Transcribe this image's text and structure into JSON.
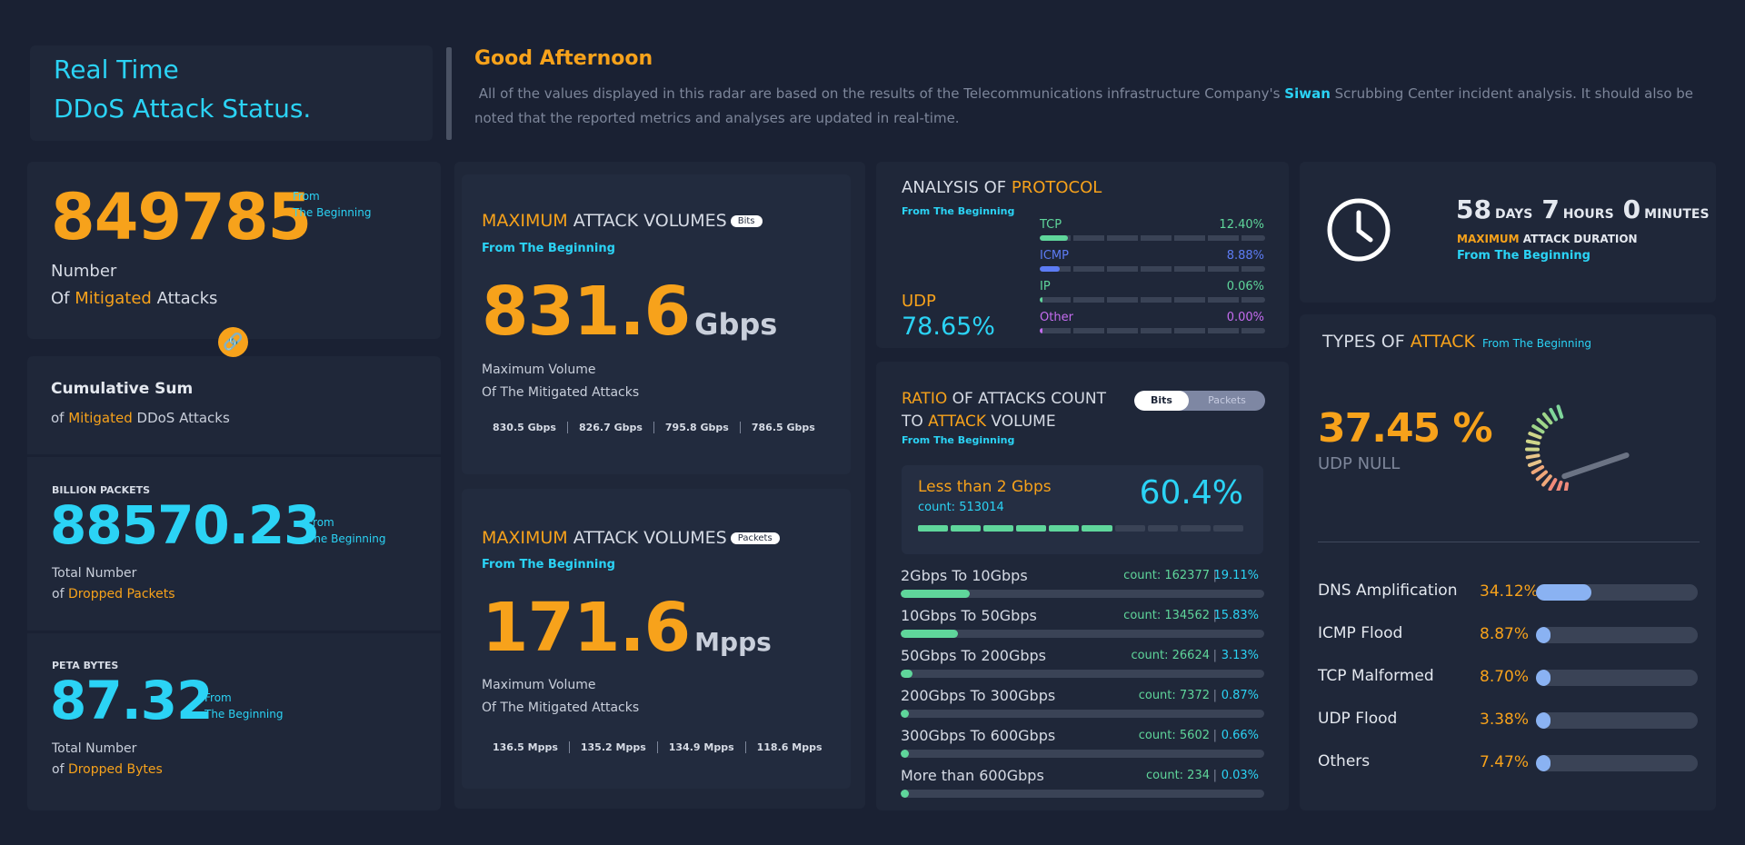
{
  "header": {
    "title_line1": "Real Time",
    "title_line2": "DDoS Attack Status.",
    "greeting": "Good Afternoon",
    "intro_pre": "All of the values displayed in this radar are based on the results of the Telecommunications infrastructure Company's ",
    "intro_brand": "Siwan",
    "intro_post": " Scrubbing Center incident analysis. It should also be noted that the reported metrics and analyses are updated in real-time."
  },
  "mitigated": {
    "value": "849785",
    "from1": "From",
    "from2": "The Beginning",
    "label1": "Number",
    "label2a": "Of ",
    "label2b": "Mitigated",
    "label2c": " Attacks"
  },
  "cumulative": {
    "title": "Cumulative Sum",
    "sub_a": "of ",
    "sub_b": "Mitigated",
    "sub_c": " DDoS Attacks"
  },
  "packets": {
    "caption": "BILLION PACKETS",
    "value": "88570.23",
    "from1": "From",
    "from2": "The Beginning",
    "label1": "Total Number",
    "label2a": "of ",
    "label2b": "Dropped Packets"
  },
  "bytes": {
    "caption": "PETA BYTES",
    "value": "87.32",
    "from1": "From",
    "from2": "The Beginning",
    "label1": "Total Number",
    "label2a": "of ",
    "label2b": "Dropped Bytes"
  },
  "max_bits": {
    "title_a": "MAXIMUM",
    "title_b": " ATTACK VOLUMES",
    "badge": "Bits",
    "from": "From The Beginning",
    "value": "831.6",
    "unit": "Gbps",
    "label1": "Maximum Volume",
    "label2": "Of The Mitigated Attacks",
    "recent": [
      "830.5 Gbps",
      "826.7 Gbps",
      "795.8 Gbps",
      "786.5 Gbps"
    ]
  },
  "max_packets": {
    "title_a": "MAXIMUM",
    "title_b": " ATTACK VOLUMES",
    "badge": "Packets",
    "from": "From The Beginning",
    "value": "171.6",
    "unit": "Mpps",
    "label1": "Maximum Volume",
    "label2": "Of The Mitigated Attacks",
    "recent": [
      "136.5 Mpps",
      "135.2 Mpps",
      "134.9 Mpps",
      "118.6 Mpps"
    ]
  },
  "protocol": {
    "title_a": "ANALYSIS OF ",
    "title_b": "PROTOCOL",
    "from": "From The Beginning",
    "main_name": "UDP",
    "main_value": "78.65%",
    "items": [
      {
        "name": "TCP",
        "value": "12.40%",
        "fraction": 0.124,
        "color": "#5fd69b"
      },
      {
        "name": "ICMP",
        "value": "8.88%",
        "fraction": 0.0888,
        "color": "#5d7cf5"
      },
      {
        "name": "IP",
        "value": "0.06%",
        "fraction": 0.0006,
        "color": "#5fd69b"
      },
      {
        "name": "Other",
        "value": "0.00%",
        "fraction": 0.0,
        "color": "#c56cf0"
      }
    ]
  },
  "ratio": {
    "title_a": "RATIO",
    "title_b": " OF ATTACKS COUNT",
    "title_c": "TO ",
    "title_d": "ATTACK",
    "title_e": " VOLUME",
    "from": "From The Beginning",
    "toggle": [
      "Bits",
      "Packets"
    ],
    "highlight": {
      "name": "Less than 2 Gbps",
      "count": "count: 513014",
      "percent": "60.4%",
      "fraction": 0.604
    },
    "rows": [
      {
        "name": "2Gbps To 10Gbps",
        "count": "count: 162377",
        "percent": "19.11%",
        "fraction": 0.1911
      },
      {
        "name": "10Gbps To 50Gbps",
        "count": "count: 134562",
        "percent": "15.83%",
        "fraction": 0.1583
      },
      {
        "name": "50Gbps To 200Gbps",
        "count": "count: 26624",
        "percent": "3.13%",
        "fraction": 0.0313
      },
      {
        "name": "200Gbps To 300Gbps",
        "count": "count: 7372",
        "percent": "0.87%",
        "fraction": 0.0087
      },
      {
        "name": "300Gbps To 600Gbps",
        "count": "count: 5602",
        "percent": "0.66%",
        "fraction": 0.0066
      },
      {
        "name": "More than 600Gbps",
        "count": "count: 234",
        "percent": "0.03%",
        "fraction": 0.0003
      }
    ]
  },
  "duration": {
    "days": "58",
    "days_label": "DAYS",
    "hours": "7",
    "hours_label": "HOURS",
    "minutes": "0",
    "minutes_label": "MINUTES",
    "label_a": "MAXIMUM",
    "label_b": " ATTACK DURATION",
    "from": "From The Beginning"
  },
  "types": {
    "title_a": "TYPES OF ",
    "title_b": "ATTACK",
    "from": "From The Beginning",
    "top_value": "37.45 %",
    "top_name": "UDP NULL",
    "gauge_fraction": 0.3745,
    "items": [
      {
        "name": "DNS Amplification",
        "percent": "34.12%",
        "fraction": 0.3412
      },
      {
        "name": "ICMP Flood",
        "percent": "8.87%",
        "fraction": 0.0887
      },
      {
        "name": "TCP Malformed",
        "percent": "8.70%",
        "fraction": 0.087
      },
      {
        "name": "UDP Flood",
        "percent": "3.38%",
        "fraction": 0.0338
      },
      {
        "name": "Others",
        "percent": "7.47%",
        "fraction": 0.0747
      }
    ]
  }
}
